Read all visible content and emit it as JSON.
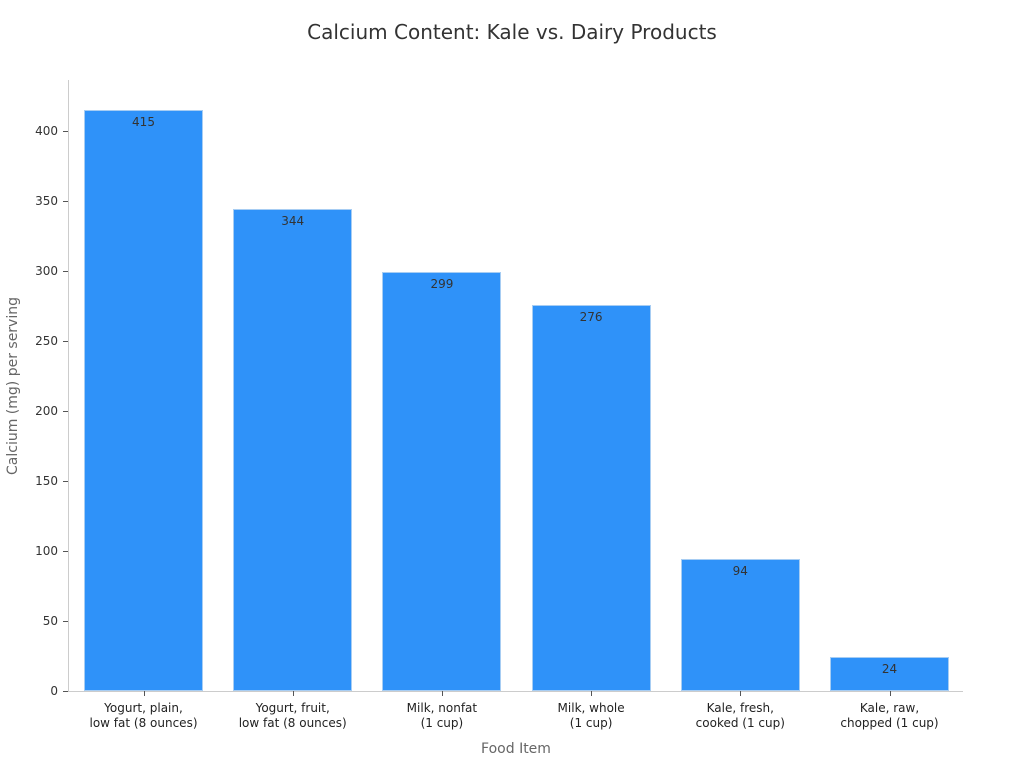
{
  "chart_data": {
    "type": "bar",
    "title": "Calcium Content: Kale vs. Dairy Products",
    "xlabel": "Food Item",
    "ylabel": "Calcium (mg) per serving",
    "categories": [
      "Yogurt, plain,\nlow fat (8 ounces)",
      "Yogurt, fruit,\nlow fat (8 ounces)",
      "Milk, nonfat\n(1 cup)",
      "Milk, whole\n(1 cup)",
      "Kale, fresh,\ncooked (1 cup)",
      "Kale, raw,\nchopped (1 cup)"
    ],
    "values": [
      415,
      344,
      299,
      276,
      94,
      24
    ],
    "yticks": [
      0,
      50,
      100,
      150,
      200,
      250,
      300,
      350,
      400
    ],
    "ylim": [
      0,
      436
    ],
    "grid": false,
    "legend": null,
    "bar_color": "#2f92f9"
  },
  "labels": {
    "cat0_l1": "Yogurt, plain,",
    "cat0_l2": "low fat (8 ounces)",
    "cat1_l1": "Yogurt, fruit,",
    "cat1_l2": "low fat (8 ounces)",
    "cat2_l1": "Milk, nonfat",
    "cat2_l2": "(1 cup)",
    "cat3_l1": "Milk, whole",
    "cat3_l2": "(1 cup)",
    "cat4_l1": "Kale, fresh,",
    "cat4_l2": "cooked (1 cup)",
    "cat5_l1": "Kale, raw,",
    "cat5_l2": "chopped (1 cup)"
  }
}
